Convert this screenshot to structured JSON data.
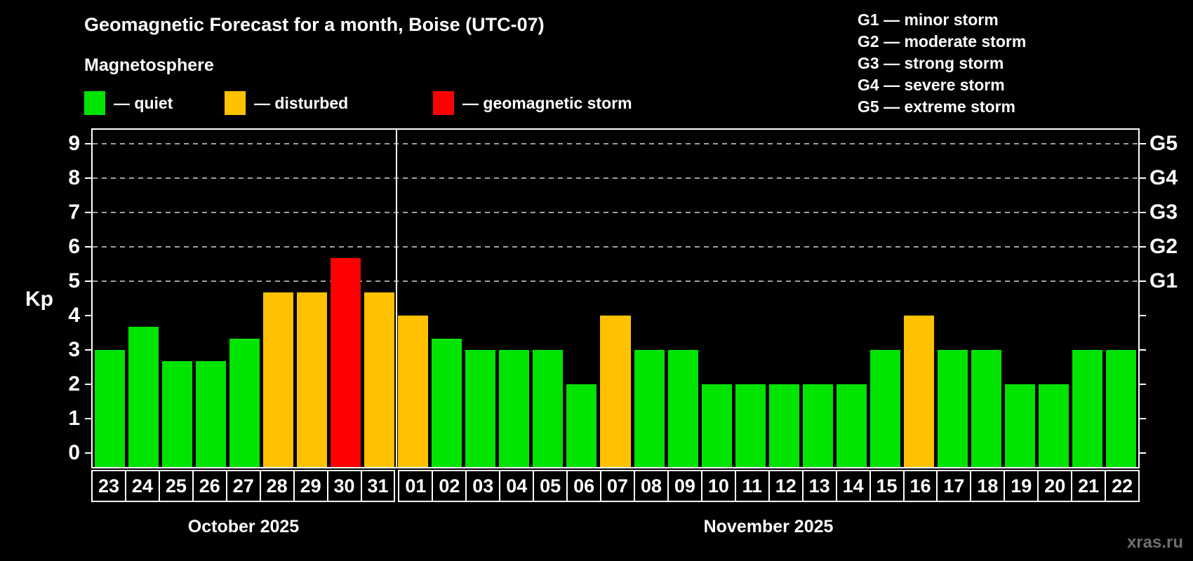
{
  "title": "Geomagnetic Forecast for a month, Boise (UTC-07)",
  "subtitle": "Magnetosphere",
  "legend": {
    "items": [
      {
        "key": "quiet",
        "label": "— quiet",
        "color": "#00e400"
      },
      {
        "key": "disturbed",
        "label": "— disturbed",
        "color": "#ffc100"
      },
      {
        "key": "storm",
        "label": "— geomagnetic storm",
        "color": "#ff0000"
      }
    ]
  },
  "g_legend": [
    "G1 — minor storm",
    "G2 — moderate storm",
    "G3 — strong storm",
    "G4 — severe storm",
    "G5 — extreme storm"
  ],
  "watermark": "xras.ru",
  "chart_data": {
    "type": "bar",
    "ylabel": "Kp",
    "ylim": [
      -0.4,
      9.4
    ],
    "yticks": [
      0,
      1,
      2,
      3,
      4,
      5,
      6,
      7,
      8,
      9
    ],
    "gridlines_kp": [
      5,
      6,
      7,
      8,
      9
    ],
    "right_axis_labels": [
      {
        "kp": 5,
        "label": "G1"
      },
      {
        "kp": 6,
        "label": "G2"
      },
      {
        "kp": 7,
        "label": "G3"
      },
      {
        "kp": 8,
        "label": "G4"
      },
      {
        "kp": 9,
        "label": "G5"
      }
    ],
    "months": [
      {
        "label": "October 2025",
        "days": [
          {
            "day": "23",
            "kp": 3.0,
            "status": "quiet"
          },
          {
            "day": "24",
            "kp": 3.67,
            "status": "quiet"
          },
          {
            "day": "25",
            "kp": 2.67,
            "status": "quiet"
          },
          {
            "day": "26",
            "kp": 2.67,
            "status": "quiet"
          },
          {
            "day": "27",
            "kp": 3.33,
            "status": "quiet"
          },
          {
            "day": "28",
            "kp": 4.67,
            "status": "disturbed"
          },
          {
            "day": "29",
            "kp": 4.67,
            "status": "disturbed"
          },
          {
            "day": "30",
            "kp": 5.67,
            "status": "storm"
          },
          {
            "day": "31",
            "kp": 4.67,
            "status": "disturbed"
          }
        ]
      },
      {
        "label": "November 2025",
        "days": [
          {
            "day": "01",
            "kp": 4.0,
            "status": "disturbed"
          },
          {
            "day": "02",
            "kp": 3.33,
            "status": "quiet"
          },
          {
            "day": "03",
            "kp": 3.0,
            "status": "quiet"
          },
          {
            "day": "04",
            "kp": 3.0,
            "status": "quiet"
          },
          {
            "day": "05",
            "kp": 3.0,
            "status": "quiet"
          },
          {
            "day": "06",
            "kp": 2.0,
            "status": "quiet"
          },
          {
            "day": "07",
            "kp": 4.0,
            "status": "disturbed"
          },
          {
            "day": "08",
            "kp": 3.0,
            "status": "quiet"
          },
          {
            "day": "09",
            "kp": 3.0,
            "status": "quiet"
          },
          {
            "day": "10",
            "kp": 2.0,
            "status": "quiet"
          },
          {
            "day": "11",
            "kp": 2.0,
            "status": "quiet"
          },
          {
            "day": "12",
            "kp": 2.0,
            "status": "quiet"
          },
          {
            "day": "13",
            "kp": 2.0,
            "status": "quiet"
          },
          {
            "day": "14",
            "kp": 2.0,
            "status": "quiet"
          },
          {
            "day": "15",
            "kp": 3.0,
            "status": "quiet"
          },
          {
            "day": "16",
            "kp": 4.0,
            "status": "disturbed"
          },
          {
            "day": "17",
            "kp": 3.0,
            "status": "quiet"
          },
          {
            "day": "18",
            "kp": 3.0,
            "status": "quiet"
          },
          {
            "day": "19",
            "kp": 2.0,
            "status": "quiet"
          },
          {
            "day": "20",
            "kp": 2.0,
            "status": "quiet"
          },
          {
            "day": "21",
            "kp": 3.0,
            "status": "quiet"
          },
          {
            "day": "22",
            "kp": 3.0,
            "status": "quiet"
          }
        ]
      }
    ]
  }
}
